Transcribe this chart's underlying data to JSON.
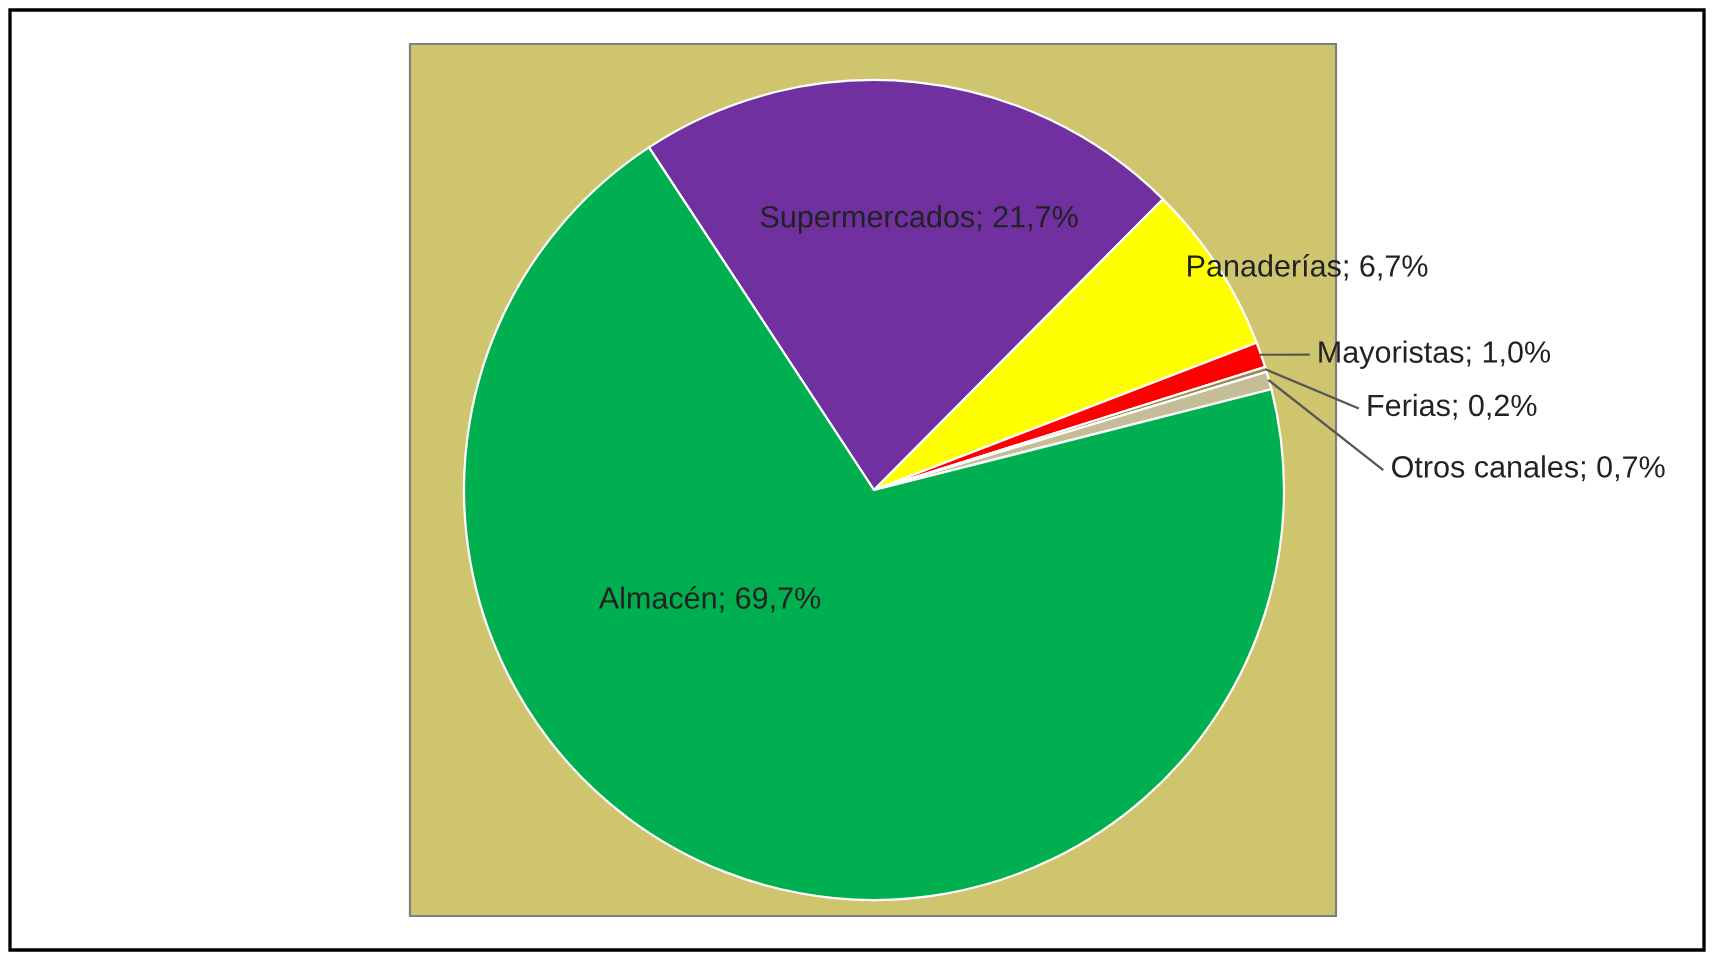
{
  "chart_data": {
    "type": "pie",
    "categories": [
      "Supermercados",
      "Panaderías",
      "Mayoristas",
      "Ferias",
      "Otros canales",
      "Almacén"
    ],
    "values": [
      21.7,
      6.7,
      1.0,
      0.2,
      0.7,
      69.7
    ],
    "colors": [
      "#7030a0",
      "#ffff00",
      "#ff0000",
      "#948a54",
      "#c4bd97",
      "#00b050"
    ],
    "value_labels": [
      "21,7%",
      "6,7%",
      "1,0%",
      "0,2%",
      "0,7%",
      "69,7%"
    ],
    "legend": false
  }
}
